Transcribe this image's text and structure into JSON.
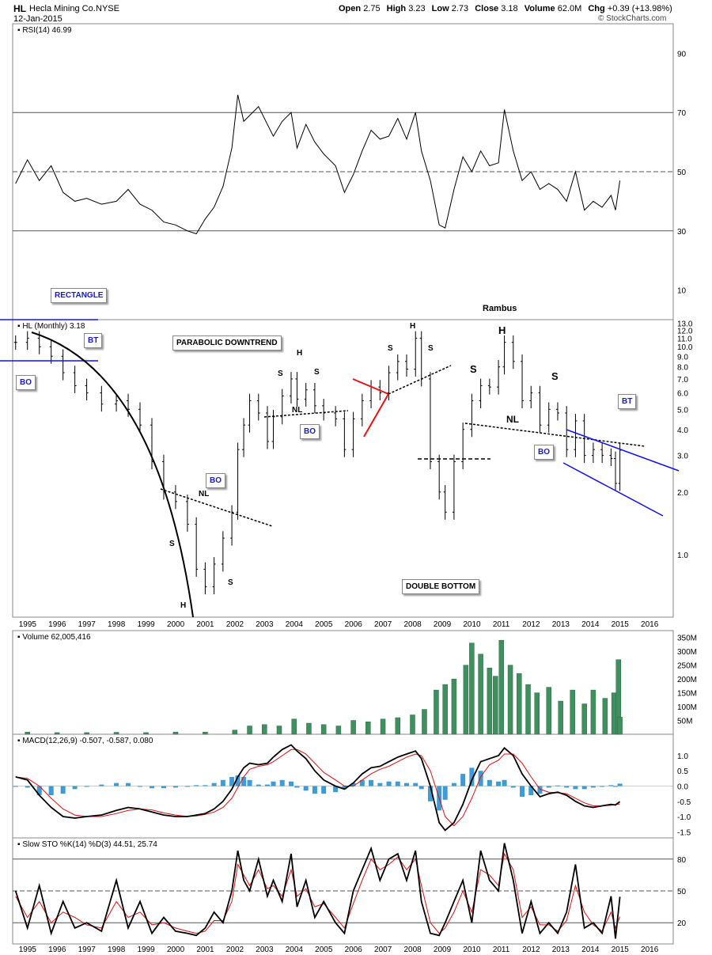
{
  "header": {
    "symbol": "HL",
    "company": "Hecla Mining Co.",
    "exchange": "NYSE",
    "date": "12-Jan-2015",
    "open_label": "Open",
    "open": "2.75",
    "high_label": "High",
    "high": "3.23",
    "low_label": "Low",
    "low": "2.73",
    "close_label": "Close",
    "close": "3.18",
    "volume_label": "Volume",
    "volume": "62.0M",
    "chg_label": "Chg",
    "chg": "+0.39 (+13.98%)",
    "credit": "© StockCharts.com",
    "author": "Rambus"
  },
  "colors": {
    "bar": "#000000",
    "volume": "#3f8f5f",
    "macd_hist": "#3d9bd6",
    "signal": "#e01010",
    "trendline_blue": "#1010ff",
    "trendline_red": "#ee1010",
    "grid": "#555555"
  },
  "chart_data": [
    {
      "type": "line",
      "panel": "rsi",
      "legend": "RSI(14) 46.99",
      "ylim": [
        0,
        100
      ],
      "yticks": [
        10,
        30,
        50,
        70,
        90
      ],
      "reference_lines": [
        30,
        50,
        70
      ],
      "x": [
        1994.6,
        1995.0,
        1995.4,
        1995.8,
        1996.2,
        1996.6,
        1997.0,
        1997.5,
        1998.0,
        1998.4,
        1998.8,
        1999.2,
        1999.6,
        2000.0,
        2000.4,
        2000.7,
        2001.0,
        2001.3,
        2001.6,
        2001.9,
        2002.1,
        2002.3,
        2002.5,
        2002.8,
        2003.1,
        2003.3,
        2003.6,
        2003.9,
        2004.1,
        2004.4,
        2004.7,
        2005.0,
        2005.4,
        2005.7,
        2006.0,
        2006.3,
        2006.6,
        2006.9,
        2007.2,
        2007.5,
        2007.8,
        2008.1,
        2008.3,
        2008.6,
        2008.9,
        2009.1,
        2009.4,
        2009.7,
        2010.0,
        2010.3,
        2010.6,
        2010.9,
        2011.1,
        2011.4,
        2011.7,
        2012.0,
        2012.3,
        2012.6,
        2012.9,
        2013.2,
        2013.5,
        2013.8,
        2014.1,
        2014.4,
        2014.7,
        2014.85,
        2015.0
      ],
      "y": [
        46,
        54,
        47,
        52,
        43,
        40,
        41,
        39,
        40,
        44,
        39,
        37,
        33,
        32,
        30,
        29,
        34,
        38,
        45,
        58,
        76,
        67,
        69,
        72,
        66,
        62,
        67,
        70,
        58,
        66,
        60,
        56,
        52,
        43,
        49,
        57,
        64,
        61,
        62,
        68,
        61,
        70,
        57,
        47,
        32,
        31,
        44,
        55,
        50,
        57,
        52,
        53,
        71,
        57,
        47,
        50,
        44,
        46,
        44,
        40,
        50,
        37,
        40,
        38,
        42,
        37,
        47
      ]
    },
    {
      "type": "ohlc",
      "panel": "price",
      "legend": "HL (Monthly) 3.18",
      "scale": "log",
      "ylim": [
        0.5,
        13.5
      ],
      "yticks": [
        1.0,
        2.0,
        3.0,
        4.0,
        5.0,
        6.0,
        7.0,
        8.0,
        9.0,
        10.0,
        11.0,
        12.0,
        13.0
      ],
      "xlim": [
        1994.5,
        2016.8
      ],
      "xticks": [
        "1995",
        "1996",
        "1997",
        "1998",
        "1999",
        "2000",
        "2001",
        "2002",
        "2003",
        "2004",
        "2005",
        "2006",
        "2007",
        "2008",
        "2009",
        "2010",
        "2011",
        "2012",
        "2013",
        "2014",
        "2015",
        "2016"
      ],
      "x": [
        1994.6,
        1995.0,
        1995.4,
        1995.8,
        1996.2,
        1996.6,
        1997.0,
        1997.5,
        1998.0,
        1998.4,
        1998.8,
        1999.2,
        1999.6,
        2000.0,
        2000.4,
        2000.7,
        2001.0,
        2001.3,
        2001.6,
        2001.9,
        2002.1,
        2002.3,
        2002.5,
        2002.8,
        2003.1,
        2003.3,
        2003.6,
        2003.9,
        2004.1,
        2004.4,
        2004.7,
        2005.0,
        2005.4,
        2005.7,
        2006.0,
        2006.3,
        2006.6,
        2006.9,
        2007.2,
        2007.5,
        2007.8,
        2008.1,
        2008.3,
        2008.6,
        2008.9,
        2009.1,
        2009.4,
        2009.7,
        2010.0,
        2010.3,
        2010.6,
        2010.9,
        2011.1,
        2011.4,
        2011.7,
        2012.0,
        2012.3,
        2012.6,
        2012.9,
        2013.2,
        2013.5,
        2013.8,
        2014.1,
        2014.4,
        2014.7,
        2014.85,
        2015.0
      ],
      "close": [
        10.5,
        11.0,
        10.0,
        9.0,
        7.5,
        6.5,
        6.0,
        5.3,
        5.5,
        5.0,
        4.2,
        2.8,
        2.0,
        1.8,
        1.4,
        0.85,
        0.7,
        0.9,
        1.2,
        1.6,
        3.2,
        4.2,
        5.5,
        4.8,
        3.5,
        4.6,
        5.8,
        7.0,
        5.6,
        6.2,
        5.2,
        4.8,
        4.5,
        3.2,
        4.5,
        5.5,
        6.4,
        6.0,
        7.5,
        8.5,
        7.8,
        11.0,
        7.0,
        2.8,
        2.0,
        1.6,
        2.8,
        4.0,
        5.5,
        6.5,
        6.4,
        8.0,
        10.5,
        8.5,
        5.5,
        6.0,
        4.2,
        5.0,
        4.8,
        3.2,
        4.4,
        3.0,
        3.2,
        3.0,
        2.9,
        2.2,
        3.18
      ]
    },
    {
      "type": "bar",
      "panel": "volume",
      "legend": "Volume 62,005,416",
      "ylim": [
        0,
        375
      ],
      "yticks": [
        "50M",
        "100M",
        "150M",
        "200M",
        "250M",
        "300M",
        "350M"
      ],
      "x": [
        1995.0,
        1996.0,
        1997.0,
        1998.0,
        1999.0,
        2000.0,
        2001.0,
        2002.0,
        2002.5,
        2003.0,
        2003.5,
        2004.0,
        2004.5,
        2005.0,
        2005.5,
        2006.0,
        2006.5,
        2007.0,
        2007.5,
        2008.0,
        2008.4,
        2008.8,
        2009.1,
        2009.4,
        2009.8,
        2010.0,
        2010.3,
        2010.6,
        2010.8,
        2011.0,
        2011.3,
        2011.6,
        2011.9,
        2012.2,
        2012.6,
        2013.0,
        2013.4,
        2013.8,
        2014.1,
        2014.5,
        2014.8,
        2014.95,
        2015.0
      ],
      "values": [
        8,
        6,
        6,
        7,
        6,
        8,
        8,
        15,
        30,
        35,
        30,
        55,
        40,
        35,
        30,
        50,
        45,
        55,
        60,
        70,
        90,
        160,
        180,
        200,
        250,
        330,
        290,
        240,
        210,
        340,
        250,
        220,
        180,
        150,
        170,
        120,
        160,
        110,
        160,
        130,
        150,
        270,
        62
      ]
    },
    {
      "type": "line",
      "panel": "macd",
      "legend": "MACD(12,26,9) -0.507, -0.587, 0.080",
      "series_names": [
        "MACD",
        "signal",
        "histogram"
      ],
      "ylim": [
        -1.7,
        1.7
      ],
      "yticks": [
        -1.5,
        -1.0,
        -0.5,
        0.0,
        0.5,
        1.0
      ],
      "x": [
        1994.6,
        1995.0,
        1995.4,
        1995.8,
        1996.2,
        1996.6,
        1997.0,
        1997.5,
        1998.0,
        1998.4,
        1998.8,
        1999.2,
        1999.6,
        2000.0,
        2000.4,
        2000.7,
        2001.0,
        2001.3,
        2001.6,
        2001.9,
        2002.1,
        2002.3,
        2002.5,
        2002.8,
        2003.1,
        2003.3,
        2003.6,
        2003.9,
        2004.1,
        2004.4,
        2004.7,
        2005.0,
        2005.4,
        2005.7,
        2006.0,
        2006.3,
        2006.6,
        2006.9,
        2007.2,
        2007.5,
        2007.8,
        2008.1,
        2008.3,
        2008.6,
        2008.9,
        2009.1,
        2009.4,
        2009.7,
        2010.0,
        2010.3,
        2010.6,
        2010.9,
        2011.1,
        2011.4,
        2011.7,
        2012.0,
        2012.3,
        2012.6,
        2012.9,
        2013.2,
        2013.5,
        2013.8,
        2014.1,
        2014.4,
        2014.7,
        2014.85,
        2015.0
      ],
      "macd": [
        0.3,
        0.2,
        -0.3,
        -0.7,
        -1.0,
        -1.05,
        -1.0,
        -0.95,
        -0.8,
        -0.7,
        -0.75,
        -0.85,
        -0.95,
        -1.0,
        -1.0,
        -0.95,
        -0.9,
        -0.75,
        -0.5,
        -0.1,
        0.3,
        0.6,
        0.75,
        0.7,
        0.75,
        0.95,
        1.2,
        1.35,
        1.15,
        0.9,
        0.5,
        0.2,
        0.0,
        -0.1,
        0.1,
        0.4,
        0.6,
        0.65,
        0.8,
        0.95,
        1.05,
        1.15,
        0.9,
        0.0,
        -1.2,
        -1.45,
        -1.2,
        -0.6,
        0.2,
        0.8,
        0.9,
        1.0,
        1.25,
        1.0,
        0.4,
        0.0,
        -0.35,
        -0.25,
        -0.2,
        -0.3,
        -0.5,
        -0.65,
        -0.7,
        -0.65,
        -0.6,
        -0.62,
        -0.51
      ],
      "signal": [
        0.3,
        0.25,
        0.0,
        -0.4,
        -0.75,
        -0.95,
        -1.0,
        -1.0,
        -0.9,
        -0.8,
        -0.75,
        -0.78,
        -0.88,
        -0.95,
        -1.0,
        -0.98,
        -0.93,
        -0.85,
        -0.7,
        -0.4,
        -0.05,
        0.3,
        0.55,
        0.65,
        0.7,
        0.8,
        1.0,
        1.2,
        1.2,
        1.05,
        0.75,
        0.45,
        0.2,
        0.0,
        0.0,
        0.2,
        0.4,
        0.55,
        0.65,
        0.8,
        0.95,
        1.05,
        1.0,
        0.5,
        -0.4,
        -1.0,
        -1.3,
        -1.0,
        -0.4,
        0.3,
        0.7,
        0.85,
        1.05,
        1.05,
        0.75,
        0.3,
        -0.1,
        -0.2,
        -0.22,
        -0.25,
        -0.4,
        -0.55,
        -0.65,
        -0.65,
        -0.63,
        -0.6,
        -0.59
      ]
    },
    {
      "type": "line",
      "panel": "stochastic",
      "legend": "Slow STO %K(14) %D(3) 44.51, 25.74",
      "series_names": [
        "%K",
        "%D"
      ],
      "ylim": [
        0,
        100
      ],
      "yticks": [
        20,
        50,
        80
      ],
      "reference_lines": [
        20,
        50,
        80
      ],
      "x": [
        1994.6,
        1995.0,
        1995.4,
        1995.8,
        1996.2,
        1996.6,
        1997.0,
        1997.5,
        1998.0,
        1998.4,
        1998.8,
        1999.2,
        1999.6,
        2000.0,
        2000.4,
        2000.7,
        2001.0,
        2001.3,
        2001.6,
        2001.9,
        2002.1,
        2002.3,
        2002.5,
        2002.8,
        2003.1,
        2003.3,
        2003.6,
        2003.9,
        2004.1,
        2004.4,
        2004.7,
        2005.0,
        2005.4,
        2005.7,
        2006.0,
        2006.3,
        2006.6,
        2006.9,
        2007.2,
        2007.5,
        2007.8,
        2008.1,
        2008.3,
        2008.6,
        2008.9,
        2009.1,
        2009.4,
        2009.7,
        2010.0,
        2010.3,
        2010.6,
        2010.9,
        2011.1,
        2011.4,
        2011.7,
        2012.0,
        2012.3,
        2012.6,
        2012.9,
        2013.2,
        2013.5,
        2013.8,
        2014.1,
        2014.4,
        2014.7,
        2014.85,
        2015.0
      ],
      "k": [
        50,
        15,
        55,
        10,
        40,
        15,
        20,
        12,
        60,
        15,
        40,
        10,
        25,
        12,
        10,
        8,
        15,
        30,
        20,
        50,
        88,
        60,
        50,
        80,
        45,
        60,
        40,
        85,
        35,
        60,
        25,
        40,
        20,
        10,
        50,
        70,
        90,
        60,
        80,
        85,
        60,
        88,
        40,
        10,
        8,
        20,
        40,
        60,
        20,
        88,
        60,
        50,
        95,
        60,
        10,
        40,
        10,
        20,
        10,
        30,
        75,
        15,
        20,
        10,
        45,
        5,
        44.51
      ],
      "d": [
        45,
        25,
        40,
        20,
        30,
        25,
        18,
        15,
        40,
        25,
        30,
        18,
        20,
        15,
        12,
        10,
        12,
        22,
        22,
        40,
        75,
        65,
        55,
        70,
        52,
        55,
        45,
        70,
        45,
        52,
        35,
        38,
        25,
        15,
        38,
        60,
        80,
        70,
        75,
        82,
        70,
        80,
        55,
        20,
        10,
        15,
        30,
        50,
        30,
        70,
        65,
        55,
        85,
        70,
        25,
        35,
        18,
        18,
        12,
        22,
        55,
        30,
        18,
        12,
        30,
        15,
        25.74
      ]
    }
  ],
  "annotations": {
    "rectangle": "RECTANGLE",
    "bt_left": "BT",
    "bo_left": "BO",
    "parabolic": "PARABOLIC DOWNTREND",
    "bo_2002": "BO",
    "bo_2005": "BO",
    "double_bottom": "DOUBLE BOTTOM",
    "bo_2013": "BO",
    "bt_right": "BT",
    "h_2000": "H",
    "s_1999": "S",
    "s_2001": "S",
    "nl_2000": "NL",
    "s_2003": "S",
    "h_2004": "H",
    "s_2004b": "S",
    "nl_2004": "NL",
    "s_2007": "S",
    "h_2008": "H",
    "s_2008": "S",
    "s_2010": "S",
    "h_2011": "H",
    "s_2012": "S",
    "nl_2012": "NL"
  }
}
